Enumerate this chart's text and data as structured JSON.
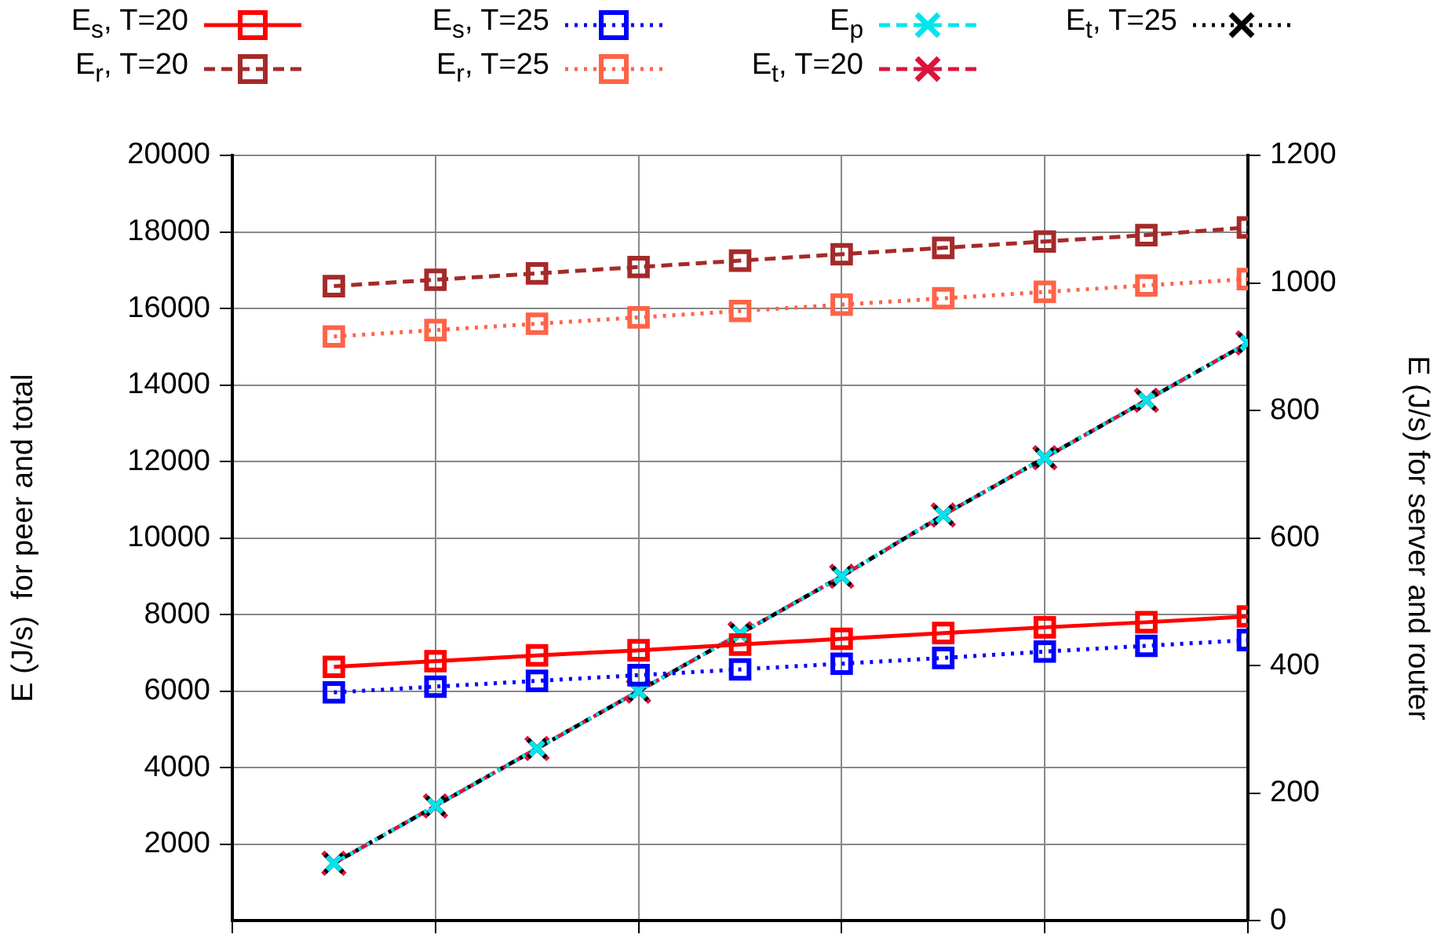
{
  "chart_data": {
    "type": "line",
    "ylabel": "E (J/s)  for peer and total",
    "y2label": "E (J/s) for server and router",
    "categories": [
      null,
      null,
      null,
      null,
      null,
      null,
      null,
      null,
      null,
      null
    ],
    "ylim": [
      0,
      20000
    ],
    "yticks": [
      2000,
      4000,
      6000,
      8000,
      10000,
      12000,
      14000,
      16000,
      18000,
      20000
    ],
    "y2lim": [
      0,
      1200
    ],
    "y2ticks": [
      0,
      200,
      400,
      600,
      800,
      1000,
      1200
    ],
    "grid": true,
    "legend": "top",
    "series": [
      {
        "name": "E$_{s}$, T=20",
        "color": "#ff0000",
        "axis": "y2",
        "marker": "square",
        "line_style": "solid",
        "values": [
          398,
          407,
          416,
          424,
          433,
          442,
          451,
          460,
          468,
          477
        ]
      },
      {
        "name": "E$_{s}$, T=25",
        "color": "#0000ff",
        "axis": "y2",
        "marker": "square",
        "line_style": "dotted",
        "values": [
          358,
          367,
          376,
          385,
          394,
          403,
          412,
          422,
          431,
          440
        ]
      },
      {
        "name": "E$_{p}$",
        "color": "#00e5ee",
        "marker": "cross",
        "line_style": "dashed",
        "values": [
          1500,
          3000,
          4500,
          6000,
          7500,
          9000,
          10600,
          12100,
          13600,
          15100
        ]
      },
      {
        "name": "E$_{t}$, T=25",
        "color": "#000000",
        "marker": "cross",
        "line_style": "dotted",
        "values": [
          1500,
          3000,
          4500,
          6000,
          7500,
          9000,
          10600,
          12100,
          13600,
          15100
        ]
      },
      {
        "name": "E$_{r}$, T=20",
        "color": "#a52a2a",
        "axis": "y2",
        "marker": "square",
        "line_style": "dashed",
        "values": [
          995,
          1005,
          1015,
          1025,
          1035,
          1045,
          1055,
          1065,
          1075,
          1087
        ]
      },
      {
        "name": "E$_{r}$, T=25",
        "color": "#ff6347",
        "axis": "y2",
        "marker": "square",
        "line_style": "dotted",
        "values": [
          916,
          926,
          936,
          946,
          956,
          966,
          976,
          986,
          996,
          1006
        ]
      },
      {
        "name": "E$_{t}$, T=20",
        "color": "#dc143c",
        "marker": "cross",
        "line_style": "dashed",
        "values": [
          1500,
          3000,
          4500,
          6000,
          7500,
          9000,
          10600,
          12100,
          13600,
          15100
        ]
      }
    ]
  }
}
